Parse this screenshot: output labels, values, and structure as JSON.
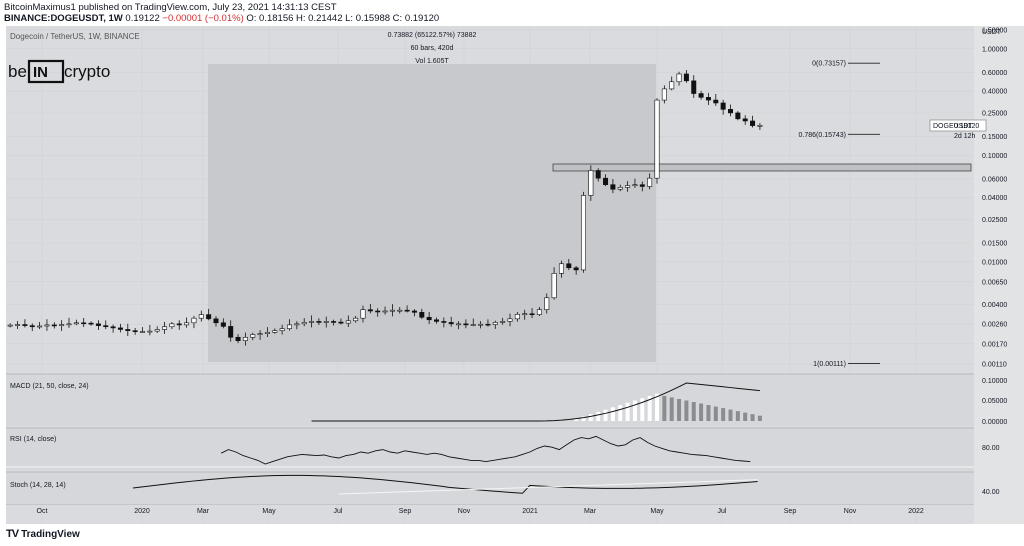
{
  "header": {
    "line1": "BitcoinMaximus1 published on TradingView.com, July 23, 2021 14:31:13 CEST",
    "symbol": "BINANCE:DOGEUSDT, 1W",
    "price": "0.19122",
    "change": "−0.00001 (−0.01%)",
    "ohlc": "O: 0.18156 H: 0.21442 L: 0.15988 C: 0.19120"
  },
  "chart_data": {
    "type": "candlestick",
    "title": "Dogecoin / TetherUS, 1W, BINANCE",
    "y_scale": "log",
    "y_axis_unit": "USDT",
    "y_ticks": [
      0.0011,
      0.0017,
      0.0026,
      0.004,
      0.0065,
      0.01,
      0.015,
      0.025,
      0.04,
      0.06,
      0.1,
      0.15,
      0.25,
      0.4,
      0.6,
      1.0,
      1.5
    ],
    "y_tick_labels": [
      "0.00110",
      "0.00170",
      "0.00260",
      "0.00400",
      "0.00650",
      "0.01000",
      "0.01500",
      "0.02500",
      "0.04000",
      "0.06000",
      "0.10000",
      "0.15000",
      "0.25000",
      "0.40000",
      "0.60000",
      "1.00000",
      "1.50000"
    ],
    "x_labels": [
      "Oct",
      "2020",
      "Mar",
      "May",
      "Jul",
      "Sep",
      "Nov",
      "2021",
      "Mar",
      "May",
      "Jul",
      "Sep",
      "Nov",
      "2022"
    ],
    "candles_close": [
      0.00255,
      0.00258,
      0.00252,
      0.00246,
      0.0025,
      0.00256,
      0.00252,
      0.00258,
      0.00262,
      0.00268,
      0.00266,
      0.00262,
      0.00252,
      0.00246,
      0.0024,
      0.00232,
      0.00226,
      0.00222,
      0.00222,
      0.00224,
      0.00232,
      0.00246,
      0.00262,
      0.00256,
      0.00268,
      0.00296,
      0.0032,
      0.00292,
      0.00268,
      0.00248,
      0.00196,
      0.00182,
      0.00196,
      0.00208,
      0.00212,
      0.00218,
      0.00226,
      0.00236,
      0.00256,
      0.00262,
      0.0027,
      0.00276,
      0.00272,
      0.00276,
      0.00272,
      0.00266,
      0.0028,
      0.00296,
      0.00356,
      0.00346,
      0.0034,
      0.00346,
      0.00352,
      0.00352,
      0.00346,
      0.00336,
      0.00302,
      0.00286,
      0.00276,
      0.0027,
      0.00262,
      0.00262,
      0.00256,
      0.00258,
      0.0026,
      0.00258,
      0.0027,
      0.00276,
      0.00292,
      0.00322,
      0.00326,
      0.0032,
      0.00356,
      0.0046,
      0.0078,
      0.0096,
      0.0088,
      0.0084,
      0.042,
      0.072,
      0.061,
      0.053,
      0.048,
      0.05,
      0.052,
      0.053,
      0.051,
      0.061,
      0.33,
      0.42,
      0.49,
      0.58,
      0.5,
      0.38,
      0.35,
      0.33,
      0.31,
      0.27,
      0.25,
      0.22,
      0.21,
      0.19,
      0.191
    ],
    "candles_open_first": 0.0025,
    "annotations": {
      "measure": [
        "0.73882 (65122.57%) 73882",
        "60 bars, 420d",
        "Vol 1.605T"
      ],
      "fib": [
        {
          "label": "0(0.73157)",
          "value": 0.73157
        },
        {
          "label": "0.786(0.15743)",
          "value": 0.15743
        },
        {
          "label": "1(0.00111)",
          "value": 0.00111
        }
      ],
      "price_tag": "DOGEUSDT",
      "price_tag_value": "0.19120",
      "countdown": "2d 12h",
      "resistance_zone": [
        0.067,
        0.078
      ]
    },
    "indicators": {
      "macd": {
        "label": "MACD (21, 50, close, 24)",
        "ticks": [
          "0.10000",
          "0.05000",
          "0.00000"
        ]
      },
      "rsi": {
        "label": "RSI (14, close)",
        "ticks": [
          "80.00"
        ]
      },
      "stoch": {
        "label": "Stoch (14, 28, 14)",
        "ticks": [
          "40.00"
        ]
      }
    }
  },
  "logo": "be[IN]crypto",
  "footer": {
    "brand": "TradingView"
  }
}
